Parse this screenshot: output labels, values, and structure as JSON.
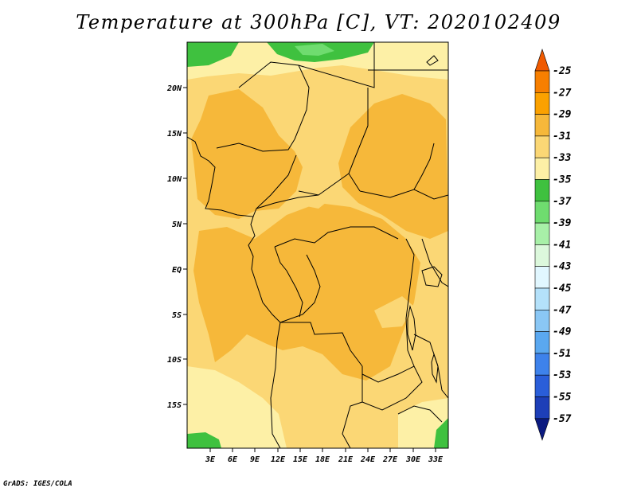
{
  "title": "Temperature at 300hPa [C], VT: 2020102409",
  "credit": "GrADS: IGES/COLA",
  "map": {
    "variable": "Temperature",
    "level": "300hPa",
    "units": "C",
    "valid_time": "2020102409",
    "lat_labels": [
      "20N",
      "15N",
      "10N",
      "5N",
      "EQ",
      "5S",
      "10S",
      "15S"
    ],
    "lon_labels": [
      "3E",
      "6E",
      "9E",
      "12E",
      "15E",
      "18E",
      "21E",
      "24E",
      "27E",
      "30E",
      "33E"
    ]
  },
  "colorbar": {
    "levels": [
      "-25",
      "-27",
      "-29",
      "-31",
      "-33",
      "-35",
      "-37",
      "-39",
      "-41",
      "-43",
      "-45",
      "-47",
      "-49",
      "-51",
      "-53",
      "-55",
      "-57"
    ],
    "colors": [
      "#f05a00",
      "#f77f00",
      "#fba100",
      "#f6b83a",
      "#fbd775",
      "#fdf0a6",
      "#3fc13f",
      "#6fdc6f",
      "#a8f0a8",
      "#dcf8dc",
      "#e1f7ff",
      "#b4e1fa",
      "#8ac7f5",
      "#5aa8f0",
      "#3e82eb",
      "#2a5ed9",
      "#1d3fb8",
      "#0b1a80"
    ]
  }
}
